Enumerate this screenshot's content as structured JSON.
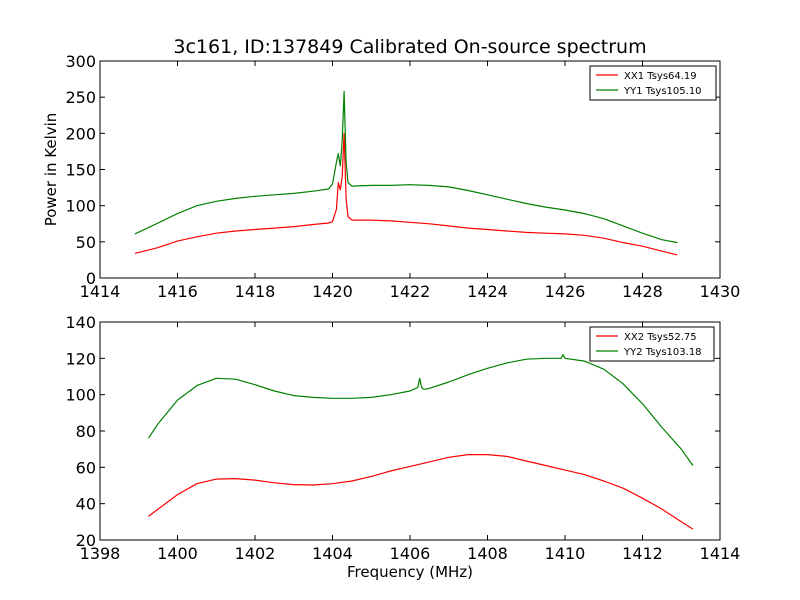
{
  "chart_data": [
    {
      "type": "line",
      "title": "3c161, ID:137849 Calibrated On-source spectrum",
      "xlabel": "",
      "ylabel": "Power in Kelvin",
      "xlim": [
        1414,
        1430
      ],
      "ylim": [
        0,
        300
      ],
      "xticks": [
        "1414",
        "1416",
        "1418",
        "1420",
        "1422",
        "1424",
        "1426",
        "1428",
        "1430"
      ],
      "yticks": [
        "0",
        "50",
        "100",
        "150",
        "200",
        "250",
        "300"
      ],
      "grid": false,
      "legend_position": "top-right",
      "series": [
        {
          "name": "XX1 Tsys64.19",
          "color": "#ff0000",
          "x": [
            1414.9,
            1415.5,
            1416.0,
            1416.5,
            1417.0,
            1417.5,
            1418.0,
            1418.5,
            1419.0,
            1419.5,
            1419.9,
            1420.0,
            1420.1,
            1420.15,
            1420.2,
            1420.25,
            1420.3,
            1420.35,
            1420.4,
            1420.5,
            1421.0,
            1421.5,
            1422.0,
            1422.5,
            1423.0,
            1423.5,
            1424.0,
            1424.5,
            1425.0,
            1425.5,
            1426.0,
            1426.5,
            1427.0,
            1427.5,
            1428.0,
            1428.5,
            1428.9
          ],
          "y": [
            34,
            42,
            51,
            57,
            62,
            65,
            67,
            69,
            71,
            74,
            76,
            78,
            95,
            132,
            122,
            140,
            200,
            110,
            85,
            80,
            80,
            79,
            77,
            75,
            72,
            69,
            67,
            65,
            63,
            62,
            61,
            59,
            55,
            49,
            44,
            37,
            32
          ]
        },
        {
          "name": "YY1 Tsys105.10",
          "color": "#008000",
          "x": [
            1414.9,
            1415.5,
            1416.0,
            1416.5,
            1417.0,
            1417.5,
            1418.0,
            1418.5,
            1419.0,
            1419.5,
            1419.9,
            1420.0,
            1420.1,
            1420.15,
            1420.2,
            1420.25,
            1420.3,
            1420.35,
            1420.4,
            1420.5,
            1421.0,
            1421.5,
            1422.0,
            1422.5,
            1423.0,
            1423.5,
            1424.0,
            1424.5,
            1425.0,
            1425.5,
            1426.0,
            1426.5,
            1427.0,
            1427.5,
            1428.0,
            1428.5,
            1428.9
          ],
          "y": [
            61,
            76,
            89,
            100,
            106,
            110,
            113,
            115,
            117,
            120,
            123,
            130,
            160,
            172,
            155,
            190,
            258,
            160,
            132,
            127,
            128,
            128,
            129,
            128,
            126,
            121,
            115,
            109,
            103,
            98,
            94,
            89,
            82,
            72,
            62,
            53,
            49
          ]
        }
      ]
    },
    {
      "type": "line",
      "title": "",
      "xlabel": "Frequency (MHz)",
      "ylabel": "",
      "xlim": [
        1398,
        1414
      ],
      "ylim": [
        20,
        140
      ],
      "xticks": [
        "1398",
        "1400",
        "1402",
        "1404",
        "1406",
        "1408",
        "1410",
        "1412",
        "1414"
      ],
      "yticks": [
        "20",
        "40",
        "60",
        "80",
        "100",
        "120",
        "140"
      ],
      "grid": false,
      "legend_position": "top-right",
      "series": [
        {
          "name": "XX2 Tsys52.75",
          "color": "#ff0000",
          "x": [
            1399.25,
            1399.5,
            1400.0,
            1400.5,
            1401.0,
            1401.5,
            1402.0,
            1402.5,
            1403.0,
            1403.5,
            1404.0,
            1404.5,
            1405.0,
            1405.5,
            1406.0,
            1406.5,
            1407.0,
            1407.5,
            1408.0,
            1408.5,
            1409.0,
            1409.5,
            1410.0,
            1410.5,
            1411.0,
            1411.5,
            1412.0,
            1412.5,
            1413.0,
            1413.3
          ],
          "y": [
            33,
            37,
            45,
            51,
            53.5,
            53.8,
            53,
            51.5,
            50.5,
            50.3,
            51,
            52.5,
            55,
            58,
            60.5,
            63,
            65.5,
            67,
            67,
            66,
            63.5,
            61,
            58.5,
            56,
            52.5,
            48.5,
            43,
            37,
            30,
            26
          ]
        },
        {
          "name": "YY2 Tsys103.18",
          "color": "#008000",
          "x": [
            1399.25,
            1399.5,
            1400.0,
            1400.5,
            1401.0,
            1401.5,
            1402.0,
            1402.5,
            1403.0,
            1403.5,
            1404.0,
            1404.5,
            1405.0,
            1405.5,
            1406.0,
            1406.2,
            1406.25,
            1406.3,
            1406.35,
            1406.4,
            1406.5,
            1407.0,
            1407.5,
            1408.0,
            1408.5,
            1409.0,
            1409.5,
            1409.9,
            1409.95,
            1410.0,
            1410.5,
            1411.0,
            1411.5,
            1412.0,
            1412.5,
            1413.0,
            1413.3
          ],
          "y": [
            76,
            84,
            97,
            105,
            109,
            108.5,
            105.5,
            102,
            99.5,
            98.5,
            98,
            98,
            98.5,
            100,
            102,
            104,
            109,
            104,
            103,
            103,
            103.5,
            107,
            111,
            114.5,
            117.5,
            119.5,
            120,
            120,
            122,
            120,
            118.5,
            114,
            106,
            95,
            82,
            70,
            61
          ]
        }
      ]
    }
  ]
}
